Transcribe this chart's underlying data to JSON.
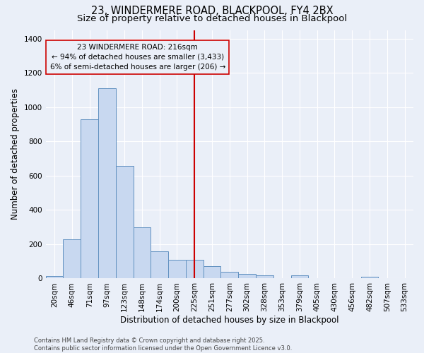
{
  "title": "23, WINDERMERE ROAD, BLACKPOOL, FY4 2BX",
  "subtitle": "Size of property relative to detached houses in Blackpool",
  "xlabel": "Distribution of detached houses by size in Blackpool",
  "ylabel": "Number of detached properties",
  "categories": [
    "20sqm",
    "46sqm",
    "71sqm",
    "97sqm",
    "123sqm",
    "148sqm",
    "174sqm",
    "200sqm",
    "225sqm",
    "251sqm",
    "277sqm",
    "302sqm",
    "328sqm",
    "353sqm",
    "379sqm",
    "405sqm",
    "430sqm",
    "456sqm",
    "482sqm",
    "507sqm",
    "533sqm"
  ],
  "values": [
    15,
    230,
    930,
    1110,
    655,
    300,
    160,
    110,
    110,
    70,
    40,
    25,
    20,
    0,
    20,
    0,
    0,
    0,
    10,
    0,
    0
  ],
  "bar_color": "#c8d8f0",
  "bar_edge_color": "#6090c0",
  "background_color": "#eaeff8",
  "grid_color": "#ffffff",
  "vline_color": "#cc0000",
  "annotation_text": "23 WINDERMERE ROAD: 216sqm\n← 94% of detached houses are smaller (3,433)\n6% of semi-detached houses are larger (206) →",
  "footer": "Contains HM Land Registry data © Crown copyright and database right 2025.\nContains public sector information licensed under the Open Government Licence v3.0.",
  "ylim": [
    0,
    1450
  ],
  "yticks": [
    0,
    200,
    400,
    600,
    800,
    1000,
    1200,
    1400
  ],
  "title_fontsize": 10.5,
  "subtitle_fontsize": 9.5,
  "ylabel_fontsize": 8.5,
  "xlabel_fontsize": 8.5,
  "tick_fontsize": 7.5,
  "footer_fontsize": 6.0,
  "annot_fontsize": 7.5
}
